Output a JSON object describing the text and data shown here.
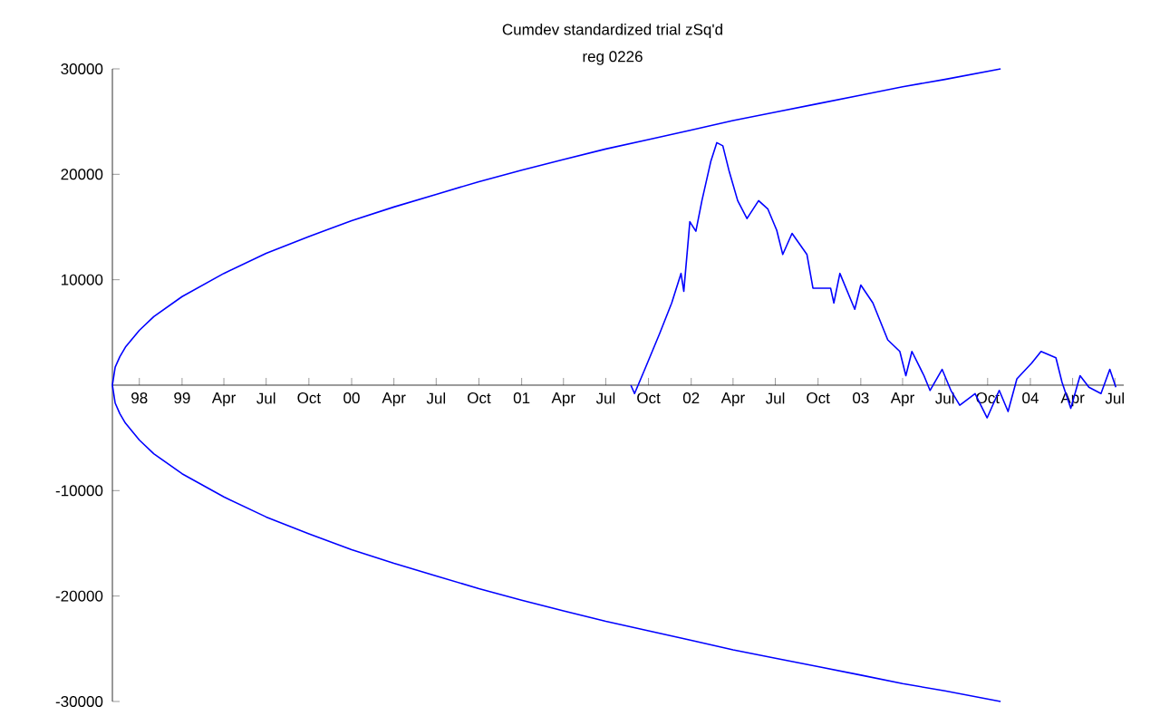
{
  "chart_data": {
    "type": "line",
    "title": "Cumdev standardized trial zSq'd",
    "subtitle": "reg 0226",
    "xlim": [
      "1998-08-04",
      "2004-07-20"
    ],
    "ylim": [
      -30000,
      30000
    ],
    "yticks": [
      -30000,
      -20000,
      -10000,
      10000,
      20000,
      30000
    ],
    "xticks": [
      {
        "value": "1998-10-01",
        "label": "98"
      },
      {
        "value": "1999-01-01",
        "label": "99"
      },
      {
        "value": "1999-04-01",
        "label": "Apr"
      },
      {
        "value": "1999-07-01",
        "label": "Jul"
      },
      {
        "value": "1999-10-01",
        "label": "Oct"
      },
      {
        "value": "2000-01-01",
        "label": "00"
      },
      {
        "value": "2000-04-01",
        "label": "Apr"
      },
      {
        "value": "2000-07-01",
        "label": "Jul"
      },
      {
        "value": "2000-10-01",
        "label": "Oct"
      },
      {
        "value": "2001-01-01",
        "label": "01"
      },
      {
        "value": "2001-04-01",
        "label": "Apr"
      },
      {
        "value": "2001-07-01",
        "label": "Jul"
      },
      {
        "value": "2001-10-01",
        "label": "Oct"
      },
      {
        "value": "2002-01-01",
        "label": "02"
      },
      {
        "value": "2002-04-01",
        "label": "Apr"
      },
      {
        "value": "2002-07-01",
        "label": "Jul"
      },
      {
        "value": "2002-10-01",
        "label": "Oct"
      },
      {
        "value": "2003-01-01",
        "label": "03"
      },
      {
        "value": "2003-04-01",
        "label": "Apr"
      },
      {
        "value": "2003-07-01",
        "label": "Jul"
      },
      {
        "value": "2003-10-01",
        "label": "Oct"
      },
      {
        "value": "2004-01-01",
        "label": "04"
      },
      {
        "value": "2004-04-01",
        "label": "Apr"
      },
      {
        "value": "2004-07-01",
        "label": "Jul"
      }
    ],
    "grid": false,
    "marker": "none",
    "line_style": "solid",
    "series": [
      {
        "color": "#0000ff",
        "x": [
          "2003-10-29",
          "2003-07-01",
          "2003-04-01",
          "2003-01-01",
          "2002-10-01",
          "2002-07-01",
          "2002-04-01",
          "2002-01-01",
          "2001-10-01",
          "2001-07-01",
          "2001-04-01",
          "2001-01-01",
          "2000-10-01",
          "2000-07-01",
          "2000-04-01",
          "2000-01-01",
          "1999-10-01",
          "1999-07-01",
          "1999-04-01",
          "1999-01-01",
          "1998-11-01",
          "1998-10-01",
          "1998-09-01",
          "1998-08-20",
          "1998-08-10",
          "1998-08-04",
          "1998-08-10",
          "1998-08-20",
          "1998-09-01",
          "1998-10-01",
          "1998-11-01",
          "1999-01-01",
          "1999-04-01",
          "1999-07-01",
          "1999-10-01",
          "2000-01-01",
          "2000-04-01",
          "2000-07-01",
          "2000-10-01",
          "2001-01-01",
          "2001-04-01",
          "2001-07-01",
          "2001-10-01",
          "2002-01-01",
          "2002-04-01",
          "2002-07-01",
          "2002-10-01",
          "2003-01-01",
          "2003-04-01",
          "2003-07-01",
          "2003-10-29"
        ],
        "values": [
          -30000,
          -29000,
          -28300,
          -27500,
          -26700,
          -25900,
          -25100,
          -24200,
          -23300,
          -22400,
          -21400,
          -20400,
          -19300,
          -18100,
          -16900,
          -15600,
          -14100,
          -12500,
          -10600,
          -8400,
          -6500,
          -5200,
          -3600,
          -2700,
          -1700,
          0,
          1700,
          2700,
          3600,
          5200,
          6500,
          8400,
          10600,
          12500,
          14100,
          15600,
          16900,
          18100,
          19300,
          20400,
          21400,
          22400,
          23300,
          24200,
          25100,
          25900,
          26700,
          27500,
          28300,
          29000,
          30000
        ]
      },
      {
        "color": "#0000ff",
        "x": [
          "2001-08-24",
          "2001-09-01",
          "2001-09-23",
          "2001-10-25",
          "2001-11-20",
          "2001-12-10",
          "2001-12-16",
          "2001-12-29",
          "2002-01-11",
          "2002-01-24",
          "2002-02-12",
          "2002-02-25",
          "2002-03-10",
          "2002-03-23",
          "2002-04-11",
          "2002-05-01",
          "2002-05-26",
          "2002-06-15",
          "2002-07-04",
          "2002-07-17",
          "2002-08-06",
          "2002-09-07",
          "2002-09-20",
          "2002-10-28",
          "2002-11-04",
          "2002-11-17",
          "2002-12-19",
          "2003-01-01",
          "2003-01-27",
          "2003-02-28",
          "2003-03-26",
          "2003-04-08",
          "2003-04-21",
          "2003-05-17",
          "2003-05-30",
          "2003-06-25",
          "2003-07-14",
          "2003-08-02",
          "2003-09-04",
          "2003-09-30",
          "2003-10-26",
          "2003-11-14",
          "2003-12-03",
          "2004-01-04",
          "2004-01-24",
          "2004-02-25",
          "2004-03-09",
          "2004-03-28",
          "2004-04-17",
          "2004-05-06",
          "2004-06-01",
          "2004-06-20",
          "2004-07-03"
        ],
        "values": [
          0,
          -800,
          1500,
          4900,
          7800,
          10600,
          8900,
          15500,
          14600,
          17500,
          21200,
          23000,
          22700,
          20400,
          17500,
          15800,
          17500,
          16700,
          14700,
          12400,
          14400,
          12400,
          9200,
          9200,
          7800,
          10600,
          7200,
          9500,
          7800,
          4300,
          3200,
          900,
          3200,
          900,
          -500,
          1500,
          -500,
          -1900,
          -800,
          -3100,
          -500,
          -2500,
          600,
          2100,
          3200,
          2600,
          300,
          -2200,
          900,
          -200,
          -800,
          1500,
          -200
        ]
      }
    ]
  }
}
